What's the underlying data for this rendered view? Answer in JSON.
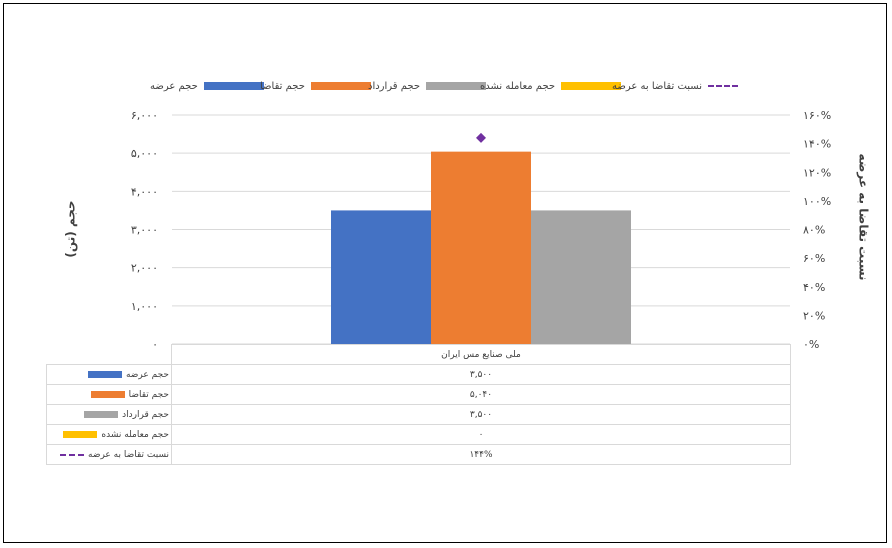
{
  "chart_data": {
    "type": "bar",
    "categories": [
      "ملی صنایع مس ایران"
    ],
    "series": [
      {
        "name": "حجم عرضه",
        "values": [
          3500
        ],
        "color": "#4472C4",
        "axis": "left",
        "kind": "bar",
        "display": "۳,۵۰۰"
      },
      {
        "name": "حجم تقاضا",
        "values": [
          5040
        ],
        "color": "#ED7D31",
        "axis": "left",
        "kind": "bar",
        "display": "۵,۰۴۰"
      },
      {
        "name": "حجم قرارداد",
        "values": [
          3500
        ],
        "color": "#A5A5A5",
        "axis": "left",
        "kind": "bar",
        "display": "۳,۵۰۰"
      },
      {
        "name": "حجم معامله نشده",
        "values": [
          0
        ],
        "color": "#FFC000",
        "axis": "left",
        "kind": "bar",
        "display": "۰"
      },
      {
        "name": "نسبت تقاضا به عرضه",
        "values": [
          144
        ],
        "color": "#7030A0",
        "axis": "right",
        "kind": "marker",
        "display": "۱۴۴%"
      }
    ],
    "ylabel": "حجم (تن)",
    "y2label": "نسبت تقاضا به عرضه",
    "ylim": [
      0,
      6000
    ],
    "y2lim": [
      0,
      160
    ],
    "yticks": [
      "۰",
      "۱,۰۰۰",
      "۲,۰۰۰",
      "۳,۰۰۰",
      "۴,۰۰۰",
      "۵,۰۰۰",
      "۶,۰۰۰"
    ],
    "y2ticks": [
      "۰%",
      "۲۰%",
      "۴۰%",
      "۶۰%",
      "۸۰%",
      "۱۰۰%",
      "۱۲۰%",
      "۱۴۰%",
      "۱۶۰%"
    ],
    "grid": true,
    "legend": "top",
    "data_table": true
  }
}
